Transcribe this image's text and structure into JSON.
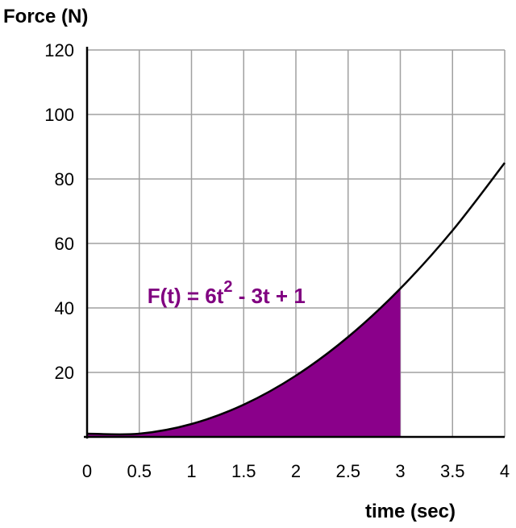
{
  "chart_data": {
    "type": "area",
    "title": "Force (N)",
    "xlabel": "time (sec)",
    "ylabel": "Force (N)",
    "xlim": [
      0,
      4
    ],
    "ylim": [
      0,
      120
    ],
    "x_ticks": [
      0,
      0.5,
      1,
      1.5,
      2,
      2.5,
      3,
      3.5,
      4
    ],
    "x_tick_labels": [
      "0",
      "0.5",
      "1",
      "1.5",
      "2",
      "2.5",
      "3",
      "3.5",
      "4"
    ],
    "y_ticks": [
      20,
      40,
      60,
      80,
      100,
      120
    ],
    "y_tick_labels": [
      "20",
      "40",
      "60",
      "80",
      "100",
      "120"
    ],
    "grid": true,
    "series": [
      {
        "x": [
          0,
          0.5,
          1,
          1.5,
          2,
          2.5,
          3,
          3.5,
          4
        ],
        "y": [
          1,
          1,
          4,
          10,
          19,
          31,
          46,
          64,
          85
        ]
      }
    ],
    "shaded_region": {
      "x_from": 0,
      "x_to": 3
    },
    "annotation": {
      "formula_main": "F(t) = 6t",
      "formula_sup": "2",
      "formula_rest": " - 3t + 1",
      "anchor_x": 0.5,
      "anchor_y": 40
    },
    "colors": {
      "fill": "#8a008a",
      "formula": "#800080",
      "line": "#000000",
      "grid": "#a0a0a0"
    }
  }
}
